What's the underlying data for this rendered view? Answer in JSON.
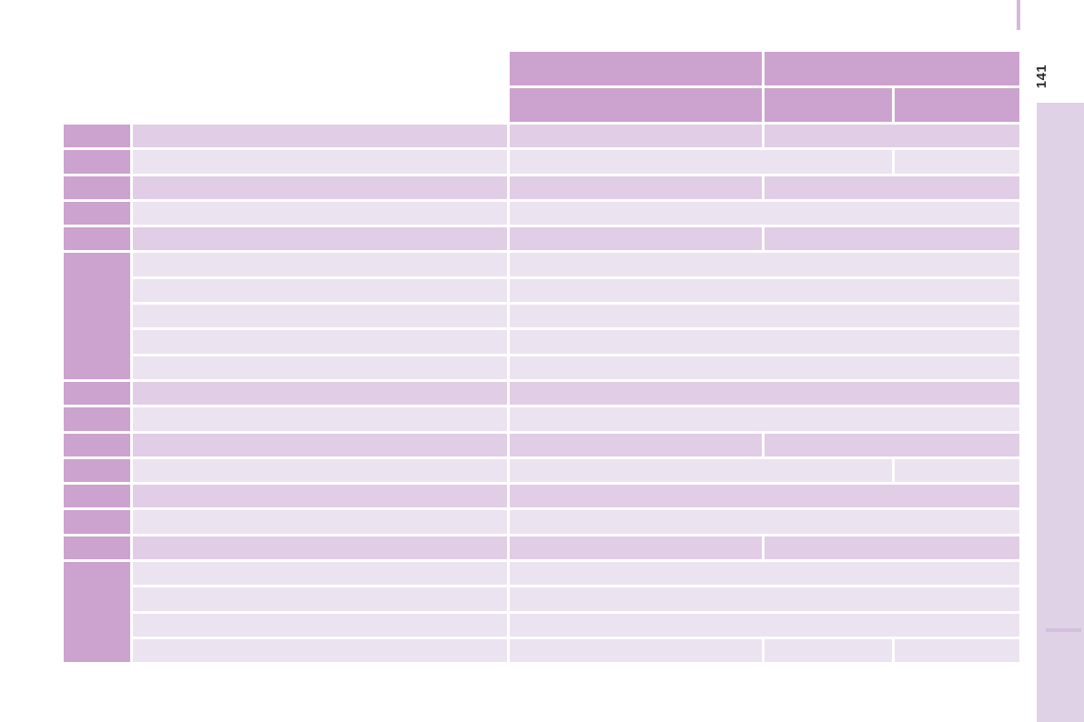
{
  "page": {
    "number": "141"
  },
  "colors": {
    "header_purple": "#cca2ce",
    "row_tint_dark": "#e1cde5",
    "row_tint_light": "#ece3f0",
    "sidebar_tab": "#e0d2e6",
    "sidebar_divider": "#d4bede",
    "top_edge_mark": "#d9b6dc"
  },
  "table": {
    "column_count": 5,
    "header": {
      "row1_cells": [
        "c3",
        "c45"
      ],
      "row2_cells": [
        "c3",
        "c4",
        "c5"
      ],
      "note": "header cells are blank; no text rendered"
    },
    "body_rows": [
      {
        "shade": "dark",
        "merge": "c3|c45",
        "label": "own"
      },
      {
        "shade": "light",
        "merge": "c34|c5",
        "label": "own"
      },
      {
        "shade": "dark",
        "merge": "c3|c45",
        "label": "own"
      },
      {
        "shade": "light",
        "merge": "c345",
        "label": "own"
      },
      {
        "shade": "dark",
        "merge": "c3|c45",
        "label": "own"
      },
      {
        "shade": "light",
        "merge": "c345",
        "label": "group:5"
      },
      {
        "shade": "light",
        "merge": "c345",
        "label": "none"
      },
      {
        "shade": "light",
        "merge": "c345",
        "label": "none"
      },
      {
        "shade": "light",
        "merge": "c345",
        "label": "none"
      },
      {
        "shade": "light",
        "merge": "c345",
        "label": "none"
      },
      {
        "shade": "dark",
        "merge": "c345",
        "label": "own"
      },
      {
        "shade": "light",
        "merge": "c345",
        "label": "own"
      },
      {
        "shade": "dark",
        "merge": "c3|c45",
        "label": "own"
      },
      {
        "shade": "light",
        "merge": "c34|c5",
        "label": "own"
      },
      {
        "shade": "dark",
        "merge": "c345",
        "label": "own"
      },
      {
        "shade": "light",
        "merge": "c345",
        "label": "own"
      },
      {
        "shade": "dark",
        "merge": "c3|c45",
        "label": "own"
      },
      {
        "shade": "light",
        "merge": "c345",
        "label": "group:4"
      },
      {
        "shade": "light",
        "merge": "c345",
        "label": "none"
      },
      {
        "shade": "light",
        "merge": "c345",
        "label": "none"
      },
      {
        "shade": "light",
        "merge": "c3|c4|c5",
        "label": "none"
      }
    ]
  }
}
